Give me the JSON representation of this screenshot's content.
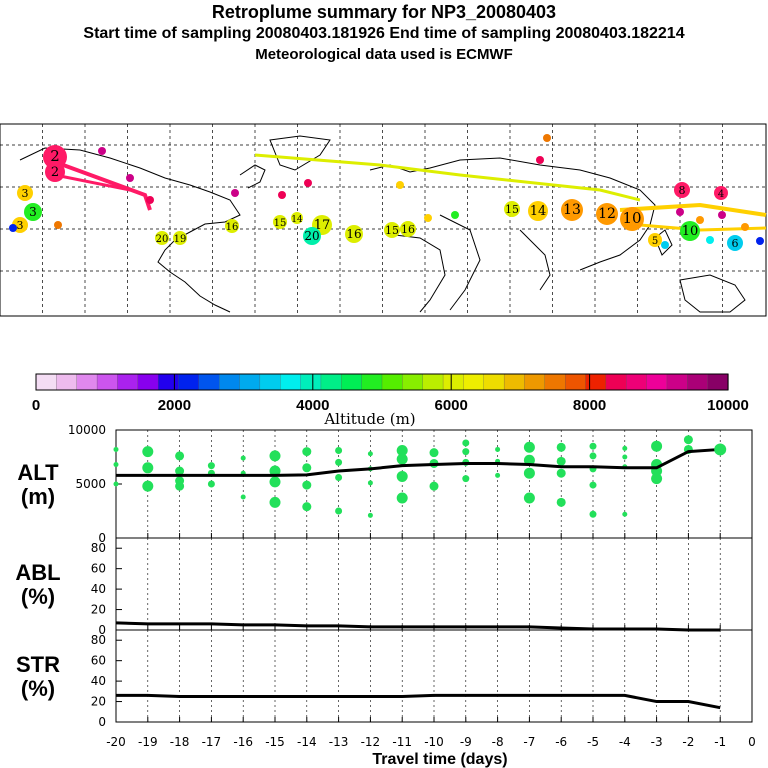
{
  "titles": {
    "line1": "Retroplume summary for NP3_20080403",
    "line2": "Start time of sampling 20080403.181926     End time of sampling 20080403.182214",
    "line3": "Meteorological data used is ECMWF"
  },
  "colors": {
    "scatter": "#22e05a",
    "line": "#000000",
    "map_land": "#000000",
    "grid": "#000000"
  },
  "colorbar": {
    "label": "Altitude (m)",
    "ticks": [
      "0",
      "2000",
      "4000",
      "6000",
      "8000",
      "10000"
    ],
    "stops": [
      "#f4ddf4",
      "#eebbee",
      "#e088ee",
      "#cc55ee",
      "#aa22ee",
      "#8800ee",
      "#2200ee",
      "#0022ee",
      "#0055ee",
      "#0088ee",
      "#00aaee",
      "#00ccee",
      "#00eeee",
      "#00eebb",
      "#00ee88",
      "#00ee55",
      "#22ee22",
      "#55ee00",
      "#88ee00",
      "#bbee00",
      "#ddee00",
      "#eeee00",
      "#eedd00",
      "#eebb00",
      "#ee9900",
      "#ee7700",
      "#ee5500",
      "#ee2200",
      "#ee0055",
      "#ee0077",
      "#ee0099",
      "#cc0088",
      "#aa0077",
      "#880066"
    ]
  },
  "map": {
    "labels": [
      {
        "t": "2",
        "c": "#ff1a66"
      },
      {
        "t": "2",
        "c": "#ff1a66"
      },
      {
        "t": "3",
        "c": "#ffd000"
      },
      {
        "t": "3",
        "c": "#22ee22"
      },
      {
        "t": "3",
        "c": "#ffd000"
      },
      {
        "t": "20",
        "c": "#ddee00"
      },
      {
        "t": "19",
        "c": "#ddee00"
      },
      {
        "t": "16",
        "c": "#ddee00"
      },
      {
        "t": "15",
        "c": "#ddee00"
      },
      {
        "t": "14",
        "c": "#ddee00"
      },
      {
        "t": "17",
        "c": "#ddee00"
      },
      {
        "t": "20",
        "c": "#00eeaa"
      },
      {
        "t": "16",
        "c": "#ddee00"
      },
      {
        "t": "15",
        "c": "#ddee00"
      },
      {
        "t": "16",
        "c": "#ddee00"
      },
      {
        "t": "15",
        "c": "#ddee00"
      },
      {
        "t": "14",
        "c": "#ffd000"
      },
      {
        "t": "13",
        "c": "#ff9900"
      },
      {
        "t": "12",
        "c": "#ff9900"
      },
      {
        "t": "10",
        "c": "#ff9900"
      },
      {
        "t": "6",
        "c": "#00ccee"
      },
      {
        "t": "5",
        "c": "#ffd000"
      },
      {
        "t": "8",
        "c": "#ff1a66"
      },
      {
        "t": "4",
        "c": "#ff1a66"
      },
      {
        "t": "10",
        "c": "#22ee22"
      }
    ]
  },
  "chart_data": [
    {
      "type": "line",
      "panel": "ALT",
      "ylabel": "ALT\n(m)",
      "ylabel_line1": "ALT",
      "ylabel_line2": "(m)",
      "ylim": [
        0,
        10000
      ],
      "yticks": [
        "10000",
        "5000",
        "0"
      ],
      "x": [
        -20,
        -19,
        -18,
        -17,
        -16,
        -15,
        -14,
        -13,
        -12,
        -11,
        -10,
        -9,
        -8,
        -7,
        -6,
        -5,
        -4,
        -3,
        -2,
        -1
      ],
      "values": [
        5800,
        5800,
        5800,
        5800,
        5800,
        5800,
        5850,
        6200,
        6400,
        6700,
        6800,
        6900,
        6900,
        6800,
        6600,
        6600,
        6500,
        6500,
        8000,
        8200
      ],
      "scatter": [
        [
          -20,
          8200
        ],
        [
          -20,
          6800
        ],
        [
          -20,
          5000
        ],
        [
          -19,
          8000
        ],
        [
          -19,
          6500
        ],
        [
          -19,
          4800
        ],
        [
          -18,
          7600
        ],
        [
          -18,
          6200
        ],
        [
          -18,
          5300
        ],
        [
          -18,
          4800
        ],
        [
          -17,
          6700
        ],
        [
          -17,
          6000
        ],
        [
          -17,
          5000
        ],
        [
          -16,
          7400
        ],
        [
          -16,
          6000
        ],
        [
          -16,
          3800
        ],
        [
          -15,
          7600
        ],
        [
          -15,
          6200
        ],
        [
          -15,
          5200
        ],
        [
          -15,
          3300
        ],
        [
          -14,
          8000
        ],
        [
          -14,
          6500
        ],
        [
          -14,
          4900
        ],
        [
          -14,
          2900
        ],
        [
          -13,
          8100
        ],
        [
          -13,
          7000
        ],
        [
          -13,
          5600
        ],
        [
          -13,
          2500
        ],
        [
          -12,
          7800
        ],
        [
          -12,
          6400
        ],
        [
          -12,
          5100
        ],
        [
          -12,
          2100
        ],
        [
          -11,
          8100
        ],
        [
          -11,
          7300
        ],
        [
          -11,
          5700
        ],
        [
          -11,
          3700
        ],
        [
          -10,
          7900
        ],
        [
          -10,
          6900
        ],
        [
          -10,
          4800
        ],
        [
          -9,
          8000
        ],
        [
          -9,
          7000
        ],
        [
          -9,
          5500
        ],
        [
          -9,
          8800
        ],
        [
          -8,
          8200
        ],
        [
          -8,
          7100
        ],
        [
          -8,
          5800
        ],
        [
          -7,
          8400
        ],
        [
          -7,
          7200
        ],
        [
          -7,
          6000
        ],
        [
          -7,
          3700
        ],
        [
          -6,
          8400
        ],
        [
          -6,
          7100
        ],
        [
          -6,
          6000
        ],
        [
          -6,
          3300
        ],
        [
          -5,
          8500
        ],
        [
          -5,
          7600
        ],
        [
          -5,
          6400
        ],
        [
          -5,
          4900
        ],
        [
          -5,
          2200
        ],
        [
          -4,
          8300
        ],
        [
          -4,
          7500
        ],
        [
          -4,
          6600
        ],
        [
          -4,
          2200
        ],
        [
          -3,
          8500
        ],
        [
          -3,
          6200
        ],
        [
          -3,
          5500
        ],
        [
          -3,
          6800
        ],
        [
          -2,
          8200
        ],
        [
          -2,
          9100
        ],
        [
          -1,
          8200
        ]
      ]
    },
    {
      "type": "line",
      "panel": "ABL",
      "ylabel_line1": "ABL",
      "ylabel_line2": "(%)",
      "ylim": [
        0,
        90
      ],
      "yticks": [
        "80",
        "60",
        "40",
        "20",
        "0"
      ],
      "x": [
        -20,
        -19,
        -18,
        -17,
        -16,
        -15,
        -14,
        -13,
        -12,
        -11,
        -10,
        -9,
        -8,
        -7,
        -6,
        -5,
        -4,
        -3,
        -2,
        -1
      ],
      "values": [
        7,
        6,
        6,
        6,
        5,
        5,
        4,
        4,
        3,
        3,
        3,
        3,
        3,
        3,
        2,
        1,
        1,
        1,
        0,
        0
      ]
    },
    {
      "type": "line",
      "panel": "STR",
      "ylabel_line1": "STR",
      "ylabel_line2": "(%)",
      "ylim": [
        0,
        90
      ],
      "yticks": [
        "80",
        "60",
        "40",
        "20",
        "0"
      ],
      "x": [
        -20,
        -19,
        -18,
        -17,
        -16,
        -15,
        -14,
        -13,
        -12,
        -11,
        -10,
        -9,
        -8,
        -7,
        -6,
        -5,
        -4,
        -3,
        -2,
        -1
      ],
      "values": [
        26,
        26,
        25,
        25,
        25,
        25,
        25,
        25,
        25,
        25,
        26,
        26,
        26,
        26,
        26,
        26,
        26,
        20,
        20,
        14
      ],
      "xlabel": "Travel time (days)",
      "xticks": [
        "-20",
        "-19",
        "-18",
        "-17",
        "-16",
        "-15",
        "-14",
        "-13",
        "-12",
        "-11",
        "-10",
        "-9",
        "-8",
        "-7",
        "-6",
        "-5",
        "-4",
        "-3",
        "-2",
        "-1",
        "0"
      ]
    }
  ]
}
